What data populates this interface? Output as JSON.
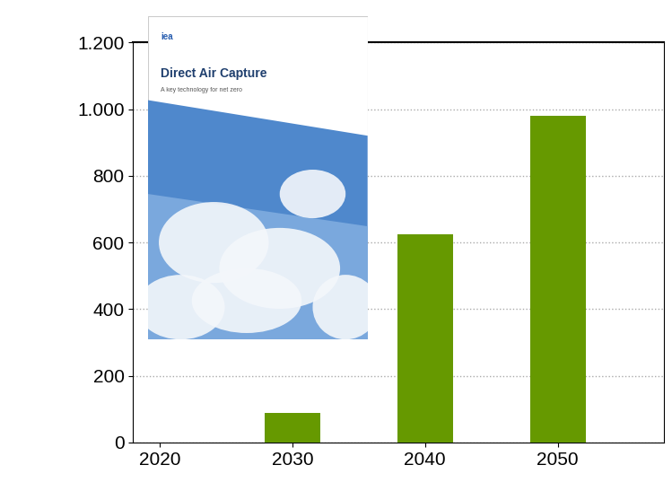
{
  "chart_data": {
    "type": "bar",
    "categories": [
      "2020",
      "2030",
      "2040",
      "2050"
    ],
    "values": [
      0,
      90,
      625,
      980
    ],
    "color": "#669900",
    "ylim": [
      0,
      1200
    ],
    "yticks": [
      0,
      200,
      400,
      600,
      800,
      {
        "value": 1000,
        "label": "1.000"
      },
      {
        "value": 1200,
        "label": "1.200"
      }
    ],
    "grid": true,
    "annotations": [
      "iea",
      "Direct Air Capture",
      "A key technology for net zero"
    ]
  }
}
